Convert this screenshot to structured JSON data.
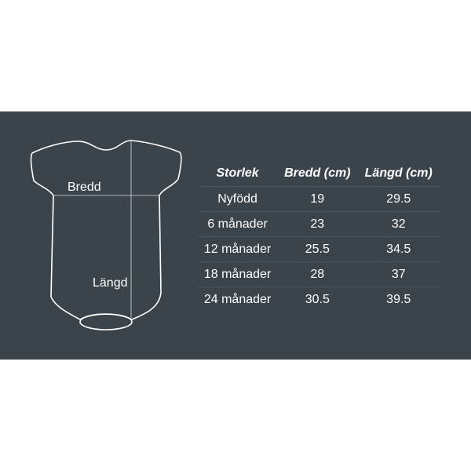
{
  "diagram": {
    "width_label": "Bredd",
    "length_label": "Längd"
  },
  "table": {
    "headers": [
      "Storlek",
      "Bredd (cm)",
      "Längd (cm)"
    ],
    "rows": [
      [
        "Nyfödd",
        "19",
        "29.5"
      ],
      [
        "6 månader",
        "23",
        "32"
      ],
      [
        "12 månader",
        "25.5",
        "34.5"
      ],
      [
        "18 månader",
        "28",
        "37"
      ],
      [
        "24 månader",
        "30.5",
        "39.5"
      ]
    ]
  },
  "colors": {
    "background": "#3b444b",
    "text": "#ffffff"
  }
}
